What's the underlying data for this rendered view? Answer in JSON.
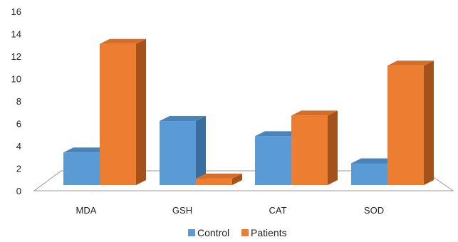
{
  "chart_data": {
    "type": "bar",
    "style": "3d-clustered-column",
    "categories": [
      "MDA",
      "GSH",
      "CAT",
      "SOD"
    ],
    "series": [
      {
        "name": "Control",
        "values": [
          3.0,
          5.9,
          4.5,
          2.0
        ],
        "color": "#5B9BD5",
        "side_color": "#3A6E9C",
        "top_color": "#4A84BC"
      },
      {
        "name": "Patients",
        "values": [
          13.0,
          0.6,
          6.4,
          11.0
        ],
        "color": "#ED7D31",
        "side_color": "#A3521C",
        "top_color": "#D86D28"
      }
    ],
    "ylim": [
      0,
      16
    ],
    "yticks": [
      0,
      2,
      4,
      6,
      8,
      10,
      12,
      14,
      16
    ],
    "legend": "bottom",
    "grid": false
  }
}
